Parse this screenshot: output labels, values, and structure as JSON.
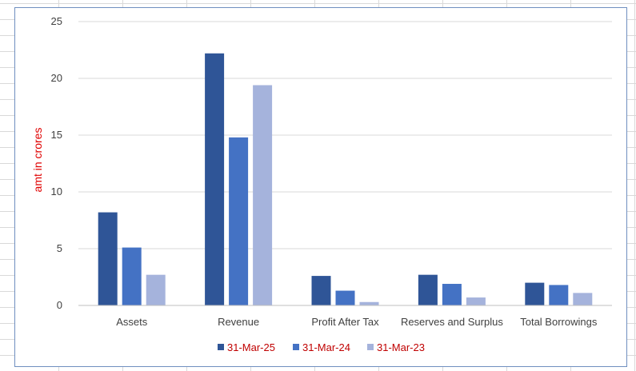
{
  "chart_data": {
    "type": "bar",
    "title": "",
    "xlabel": "",
    "ylabel": "amt in crores",
    "ylim": [
      0,
      25
    ],
    "yticks": [
      0,
      5,
      10,
      15,
      20,
      25
    ],
    "grid": true,
    "legend_position": "bottom",
    "categories": [
      "Assets",
      "Revenue",
      "Profit After Tax",
      "Reserves and Surplus",
      "Total Borrowings"
    ],
    "series": [
      {
        "name": "31-Mar-25",
        "color": "#2f5597",
        "values": [
          8.2,
          22.2,
          2.6,
          2.7,
          2.0
        ]
      },
      {
        "name": "31-Mar-24",
        "color": "#4472c4",
        "values": [
          5.1,
          14.8,
          1.3,
          1.9,
          1.8
        ]
      },
      {
        "name": "31-Mar-23",
        "color": "#a5b3dc",
        "values": [
          2.7,
          19.4,
          0.3,
          0.7,
          1.1
        ]
      }
    ]
  }
}
